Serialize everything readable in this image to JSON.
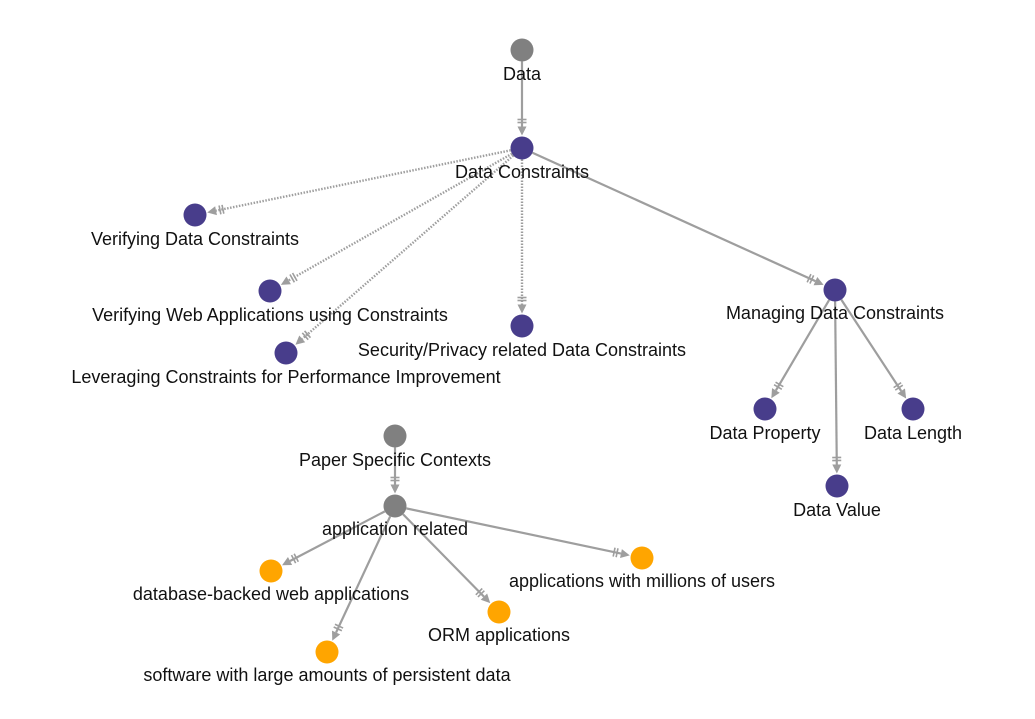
{
  "colors": {
    "root_node": "#808080",
    "concept_node": "#483D8B",
    "context_node": "#FFA500",
    "edge": "#9E9E9E",
    "label": "#111111"
  },
  "nodes": [
    {
      "id": "data",
      "label": "Data",
      "color": "root_node"
    },
    {
      "id": "data_constraints",
      "label": "Data Constraints",
      "color": "concept_node"
    },
    {
      "id": "verifying_data_constraints",
      "label": "Verifying Data Constraints",
      "color": "concept_node"
    },
    {
      "id": "verifying_web_apps",
      "label": "Verifying Web Applications using Constraints",
      "color": "concept_node"
    },
    {
      "id": "leveraging_constraints",
      "label": "Leveraging Constraints for Performance Improvement",
      "color": "concept_node"
    },
    {
      "id": "security_privacy",
      "label": "Security/Privacy related Data Constraints",
      "color": "concept_node"
    },
    {
      "id": "managing_data_constraints",
      "label": "Managing Data Constraints",
      "color": "concept_node"
    },
    {
      "id": "data_property",
      "label": "Data Property",
      "color": "concept_node"
    },
    {
      "id": "data_value",
      "label": "Data Value",
      "color": "concept_node"
    },
    {
      "id": "data_length",
      "label": "Data Length",
      "color": "concept_node"
    },
    {
      "id": "paper_specific_contexts",
      "label": "Paper Specific Contexts",
      "color": "root_node"
    },
    {
      "id": "application_related",
      "label": "application related",
      "color": "root_node"
    },
    {
      "id": "db_backed_web_apps",
      "label": "database-backed web applications",
      "color": "context_node"
    },
    {
      "id": "software_large_data",
      "label": "software with large amounts of persistent data",
      "color": "context_node"
    },
    {
      "id": "orm_apps",
      "label": "ORM applications",
      "color": "context_node"
    },
    {
      "id": "apps_millions_users",
      "label": "applications with millions of users",
      "color": "context_node"
    }
  ],
  "edges": [
    {
      "from": "data",
      "to": "data_constraints",
      "style": "solid"
    },
    {
      "from": "data_constraints",
      "to": "verifying_data_constraints",
      "style": "dotted"
    },
    {
      "from": "data_constraints",
      "to": "verifying_web_apps",
      "style": "dotted"
    },
    {
      "from": "data_constraints",
      "to": "leveraging_constraints",
      "style": "dotted"
    },
    {
      "from": "data_constraints",
      "to": "security_privacy",
      "style": "dotted"
    },
    {
      "from": "data_constraints",
      "to": "managing_data_constraints",
      "style": "solid"
    },
    {
      "from": "managing_data_constraints",
      "to": "data_property",
      "style": "solid"
    },
    {
      "from": "managing_data_constraints",
      "to": "data_value",
      "style": "solid"
    },
    {
      "from": "managing_data_constraints",
      "to": "data_length",
      "style": "solid"
    },
    {
      "from": "paper_specific_contexts",
      "to": "application_related",
      "style": "solid"
    },
    {
      "from": "application_related",
      "to": "db_backed_web_apps",
      "style": "solid"
    },
    {
      "from": "application_related",
      "to": "software_large_data",
      "style": "solid"
    },
    {
      "from": "application_related",
      "to": "orm_apps",
      "style": "solid"
    },
    {
      "from": "application_related",
      "to": "apps_millions_users",
      "style": "solid"
    }
  ]
}
